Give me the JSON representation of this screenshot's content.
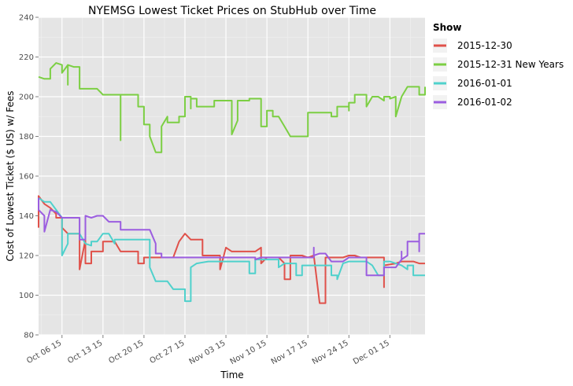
{
  "chart_data": {
    "type": "line",
    "title": "NYEMSG Lowest Ticket Prices on StubHub over Time",
    "xlabel": "Time",
    "ylabel": "Cost of Lowest Ticket ($ US) w/ Fees",
    "x_ticks": [
      "Oct 06 15",
      "Oct 13 15",
      "Oct 20 15",
      "Oct 27 15",
      "Nov 03 15",
      "Nov 10 15",
      "Nov 17 15",
      "Nov 24 15",
      "Dec 01 15"
    ],
    "x_tick_dates": [
      "2015-10-06",
      "2015-10-13",
      "2015-10-20",
      "2015-10-27",
      "2015-11-03",
      "2015-11-10",
      "2015-11-17",
      "2015-11-24",
      "2015-12-01"
    ],
    "xlim": [
      "2015-10-02",
      "2015-12-07"
    ],
    "y_ticks": [
      80,
      100,
      120,
      140,
      160,
      180,
      200,
      220,
      240
    ],
    "ylim": [
      80,
      240
    ],
    "grid": true,
    "legend_title": "Show",
    "legend_position": "right",
    "series": [
      {
        "name": "2015-12-30",
        "color": "#e0514a",
        "points": [
          [
            "2015-10-02",
            134
          ],
          [
            "2015-10-02",
            150
          ],
          [
            "2015-10-03",
            146
          ],
          [
            "2015-10-04",
            144
          ],
          [
            "2015-10-05",
            141
          ],
          [
            "2015-10-05",
            139
          ],
          [
            "2015-10-06",
            139
          ],
          [
            "2015-10-06",
            134
          ],
          [
            "2015-10-07",
            131
          ],
          [
            "2015-10-08",
            131
          ],
          [
            "2015-10-09",
            131
          ],
          [
            "2015-10-09",
            113
          ],
          [
            "2015-10-10",
            128
          ],
          [
            "2015-10-10",
            116
          ],
          [
            "2015-10-11",
            116
          ],
          [
            "2015-10-11",
            122
          ],
          [
            "2015-10-13",
            122
          ],
          [
            "2015-10-13",
            127
          ],
          [
            "2015-10-15",
            127
          ],
          [
            "2015-10-16",
            122
          ],
          [
            "2015-10-19",
            122
          ],
          [
            "2015-10-19",
            116
          ],
          [
            "2015-10-20",
            116
          ],
          [
            "2015-10-20",
            119
          ],
          [
            "2015-10-25",
            119
          ],
          [
            "2015-10-26",
            127
          ],
          [
            "2015-10-27",
            131
          ],
          [
            "2015-10-28",
            128
          ],
          [
            "2015-10-30",
            128
          ],
          [
            "2015-10-30",
            120
          ],
          [
            "2015-11-02",
            120
          ],
          [
            "2015-11-02",
            113
          ],
          [
            "2015-11-03",
            124
          ],
          [
            "2015-11-04",
            122
          ],
          [
            "2015-11-08",
            122
          ],
          [
            "2015-11-09",
            124
          ],
          [
            "2015-11-09",
            116
          ],
          [
            "2015-11-10",
            119
          ],
          [
            "2015-11-12",
            119
          ],
          [
            "2015-11-13",
            116
          ],
          [
            "2015-11-13",
            108
          ],
          [
            "2015-11-14",
            108
          ],
          [
            "2015-11-14",
            120
          ],
          [
            "2015-11-16",
            120
          ],
          [
            "2015-11-17",
            119
          ],
          [
            "2015-11-18",
            120
          ],
          [
            "2015-11-19",
            96
          ],
          [
            "2015-11-20",
            96
          ],
          [
            "2015-11-20",
            119
          ],
          [
            "2015-11-23",
            119
          ],
          [
            "2015-11-24",
            120
          ],
          [
            "2015-11-25",
            120
          ],
          [
            "2015-11-26",
            119
          ],
          [
            "2015-11-29",
            119
          ],
          [
            "2015-11-30",
            119
          ],
          [
            "2015-11-30",
            104
          ],
          [
            "2015-11-30",
            115
          ],
          [
            "2015-12-02",
            116
          ],
          [
            "2015-12-03",
            117
          ],
          [
            "2015-12-05",
            117
          ],
          [
            "2015-12-06",
            116
          ],
          [
            "2015-12-07",
            116
          ]
        ]
      },
      {
        "name": "2015-12-31 New Years",
        "color": "#7ccf43",
        "points": [
          [
            "2015-10-02",
            210
          ],
          [
            "2015-10-03",
            209
          ],
          [
            "2015-10-04",
            209
          ],
          [
            "2015-10-04",
            214
          ],
          [
            "2015-10-05",
            217
          ],
          [
            "2015-10-06",
            216
          ],
          [
            "2015-10-06",
            212
          ],
          [
            "2015-10-07",
            216
          ],
          [
            "2015-10-07",
            206
          ],
          [
            "2015-10-07",
            216
          ],
          [
            "2015-10-08",
            215
          ],
          [
            "2015-10-09",
            215
          ],
          [
            "2015-10-09",
            204
          ],
          [
            "2015-10-12",
            204
          ],
          [
            "2015-10-13",
            201
          ],
          [
            "2015-10-16",
            201
          ],
          [
            "2015-10-16",
            178
          ],
          [
            "2015-10-16",
            201
          ],
          [
            "2015-10-19",
            201
          ],
          [
            "2015-10-19",
            195
          ],
          [
            "2015-10-20",
            195
          ],
          [
            "2015-10-20",
            186
          ],
          [
            "2015-10-21",
            186
          ],
          [
            "2015-10-21",
            180
          ],
          [
            "2015-10-22",
            172
          ],
          [
            "2015-10-23",
            172
          ],
          [
            "2015-10-23",
            185
          ],
          [
            "2015-10-24",
            190
          ],
          [
            "2015-10-24",
            187
          ],
          [
            "2015-10-26",
            187
          ],
          [
            "2015-10-26",
            190
          ],
          [
            "2015-10-27",
            190
          ],
          [
            "2015-10-27",
            198
          ],
          [
            "2015-10-27",
            190
          ],
          [
            "2015-10-27",
            200
          ],
          [
            "2015-10-28",
            200
          ],
          [
            "2015-10-28",
            194
          ],
          [
            "2015-10-28",
            199
          ],
          [
            "2015-10-29",
            199
          ],
          [
            "2015-10-29",
            195
          ],
          [
            "2015-11-01",
            195
          ],
          [
            "2015-11-01",
            198
          ],
          [
            "2015-11-04",
            198
          ],
          [
            "2015-11-04",
            190
          ],
          [
            "2015-11-04",
            181
          ],
          [
            "2015-11-05",
            188
          ],
          [
            "2015-11-05",
            198
          ],
          [
            "2015-11-07",
            198
          ],
          [
            "2015-11-07",
            199
          ],
          [
            "2015-11-09",
            199
          ],
          [
            "2015-11-09",
            192
          ],
          [
            "2015-11-09",
            185
          ],
          [
            "2015-11-10",
            185
          ],
          [
            "2015-11-10",
            193
          ],
          [
            "2015-11-11",
            193
          ],
          [
            "2015-11-11",
            190
          ],
          [
            "2015-11-12",
            190
          ],
          [
            "2015-11-13",
            185
          ],
          [
            "2015-11-14",
            180
          ],
          [
            "2015-11-17",
            180
          ],
          [
            "2015-11-17",
            192
          ],
          [
            "2015-11-21",
            192
          ],
          [
            "2015-11-21",
            190
          ],
          [
            "2015-11-22",
            190
          ],
          [
            "2015-11-22",
            195
          ],
          [
            "2015-11-24",
            195
          ],
          [
            "2015-11-24",
            193
          ],
          [
            "2015-11-24",
            197
          ],
          [
            "2015-11-25",
            197
          ],
          [
            "2015-11-25",
            201
          ],
          [
            "2015-11-27",
            201
          ],
          [
            "2015-11-27",
            195
          ],
          [
            "2015-11-28",
            200
          ],
          [
            "2015-11-29",
            200
          ],
          [
            "2015-11-30",
            198
          ],
          [
            "2015-11-30",
            200
          ],
          [
            "2015-12-01",
            200
          ],
          [
            "2015-12-01",
            199
          ],
          [
            "2015-12-02",
            200
          ],
          [
            "2015-12-02",
            190
          ],
          [
            "2015-12-03",
            200
          ],
          [
            "2015-12-04",
            205
          ],
          [
            "2015-12-06",
            205
          ],
          [
            "2015-12-06",
            201
          ],
          [
            "2015-12-07",
            201
          ],
          [
            "2015-12-07",
            205
          ]
        ]
      },
      {
        "name": "2016-01-01",
        "color": "#4fd1cc",
        "points": [
          [
            "2015-10-02",
            149
          ],
          [
            "2015-10-03",
            147
          ],
          [
            "2015-10-04",
            147
          ],
          [
            "2015-10-05",
            143
          ],
          [
            "2015-10-06",
            139
          ],
          [
            "2015-10-06",
            128
          ],
          [
            "2015-10-06",
            120
          ],
          [
            "2015-10-07",
            126
          ],
          [
            "2015-10-07",
            131
          ],
          [
            "2015-10-09",
            131
          ],
          [
            "2015-10-10",
            126
          ],
          [
            "2015-10-11",
            125
          ],
          [
            "2015-10-11",
            127
          ],
          [
            "2015-10-12",
            127
          ],
          [
            "2015-10-13",
            131
          ],
          [
            "2015-10-14",
            131
          ],
          [
            "2015-10-15",
            126
          ],
          [
            "2015-10-15",
            128
          ],
          [
            "2015-10-19",
            128
          ],
          [
            "2015-10-21",
            128
          ],
          [
            "2015-10-21",
            114
          ],
          [
            "2015-10-22",
            107
          ],
          [
            "2015-10-24",
            107
          ],
          [
            "2015-10-25",
            103
          ],
          [
            "2015-10-27",
            103
          ],
          [
            "2015-10-27",
            97
          ],
          [
            "2015-10-28",
            97
          ],
          [
            "2015-10-28",
            114
          ],
          [
            "2015-10-29",
            116
          ],
          [
            "2015-10-31",
            117
          ],
          [
            "2015-11-07",
            117
          ],
          [
            "2015-11-07",
            111
          ],
          [
            "2015-11-08",
            111
          ],
          [
            "2015-11-08",
            118
          ],
          [
            "2015-11-12",
            118
          ],
          [
            "2015-11-12",
            114
          ],
          [
            "2015-11-13",
            116
          ],
          [
            "2015-11-15",
            116
          ],
          [
            "2015-11-15",
            110
          ],
          [
            "2015-11-16",
            110
          ],
          [
            "2015-11-16",
            115
          ],
          [
            "2015-11-18",
            115
          ],
          [
            "2015-11-21",
            115
          ],
          [
            "2015-11-21",
            110
          ],
          [
            "2015-11-22",
            110
          ],
          [
            "2015-11-22",
            108
          ],
          [
            "2015-11-23",
            116
          ],
          [
            "2015-11-24",
            117
          ],
          [
            "2015-11-27",
            117
          ],
          [
            "2015-11-28",
            115
          ],
          [
            "2015-11-29",
            110
          ],
          [
            "2015-11-30",
            110
          ],
          [
            "2015-11-30",
            117
          ],
          [
            "2015-12-01",
            117
          ],
          [
            "2015-12-02",
            116
          ],
          [
            "2015-12-03",
            115
          ],
          [
            "2015-12-04",
            113
          ],
          [
            "2015-12-04",
            115
          ],
          [
            "2015-12-05",
            115
          ],
          [
            "2015-12-05",
            110
          ],
          [
            "2015-12-07",
            110
          ]
        ]
      },
      {
        "name": "2016-01-02",
        "color": "#9b5de0",
        "points": [
          [
            "2015-10-02",
            149
          ],
          [
            "2015-10-02",
            143
          ],
          [
            "2015-10-03",
            140
          ],
          [
            "2015-10-03",
            132
          ],
          [
            "2015-10-04",
            143
          ],
          [
            "2015-10-05",
            142
          ],
          [
            "2015-10-06",
            139
          ],
          [
            "2015-10-09",
            139
          ],
          [
            "2015-10-09",
            128
          ],
          [
            "2015-10-10",
            128
          ],
          [
            "2015-10-10",
            140
          ],
          [
            "2015-10-11",
            139
          ],
          [
            "2015-10-12",
            140
          ],
          [
            "2015-10-13",
            140
          ],
          [
            "2015-10-14",
            137
          ],
          [
            "2015-10-16",
            137
          ],
          [
            "2015-10-16",
            133
          ],
          [
            "2015-10-21",
            133
          ],
          [
            "2015-10-22",
            126
          ],
          [
            "2015-10-22",
            121
          ],
          [
            "2015-10-23",
            121
          ],
          [
            "2015-10-23",
            119
          ],
          [
            "2015-11-08",
            119
          ],
          [
            "2015-11-08",
            118
          ],
          [
            "2015-11-09",
            119
          ],
          [
            "2015-11-18",
            119
          ],
          [
            "2015-11-18",
            124
          ],
          [
            "2015-11-18",
            120
          ],
          [
            "2015-11-19",
            121
          ],
          [
            "2015-11-20",
            121
          ],
          [
            "2015-11-21",
            117
          ],
          [
            "2015-11-23",
            117
          ],
          [
            "2015-11-24",
            119
          ],
          [
            "2015-11-27",
            119
          ],
          [
            "2015-11-27",
            110
          ],
          [
            "2015-11-29",
            110
          ],
          [
            "2015-11-30",
            110
          ],
          [
            "2015-11-30",
            114
          ],
          [
            "2015-12-01",
            114
          ],
          [
            "2015-12-02",
            114
          ],
          [
            "2015-12-03",
            118
          ],
          [
            "2015-12-03",
            122
          ],
          [
            "2015-12-03",
            118
          ],
          [
            "2015-12-04",
            120
          ],
          [
            "2015-12-04",
            127
          ],
          [
            "2015-12-06",
            127
          ],
          [
            "2015-12-06",
            122
          ],
          [
            "2015-12-06",
            131
          ],
          [
            "2015-12-07",
            131
          ]
        ]
      }
    ]
  }
}
